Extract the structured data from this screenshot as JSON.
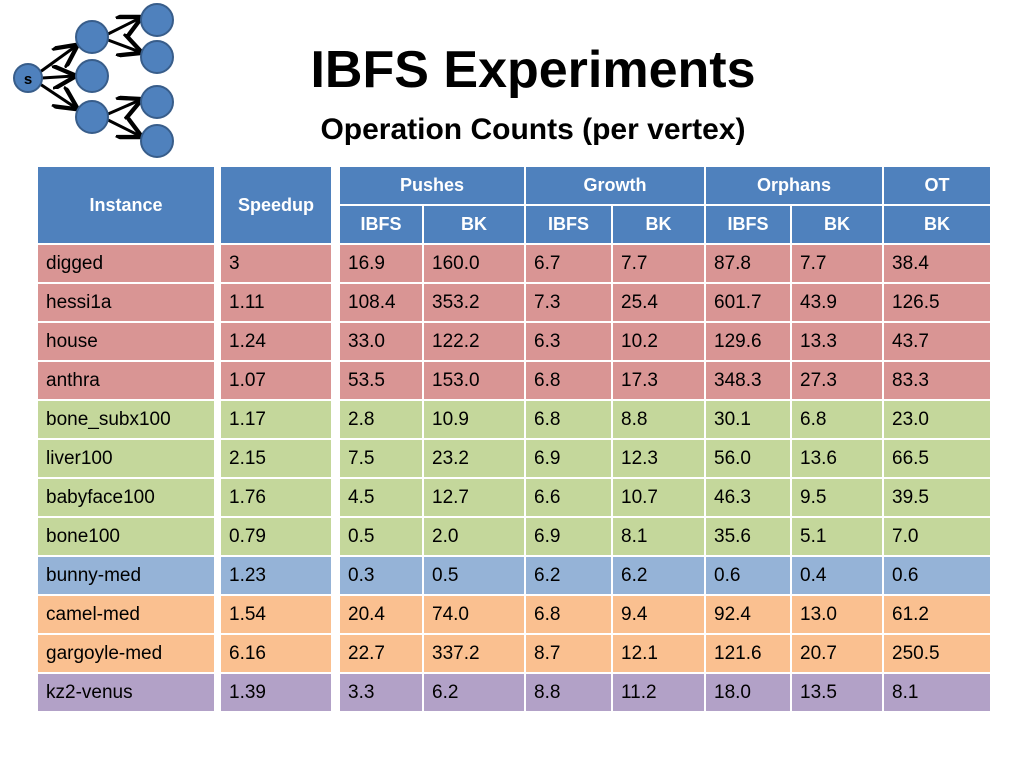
{
  "slide": {
    "title": "IBFS Experiments",
    "subtitle": "Operation Counts (per vertex)"
  },
  "logo": {
    "source_label": "s"
  },
  "colors": {
    "header": "#4f81bd",
    "red": "#d99594",
    "green": "#c4d79b",
    "blue": "#95b3d7",
    "orange": "#fac090",
    "purple": "#b2a1c7"
  },
  "table": {
    "instance_header": "Instance",
    "speedup_header": "Speedup",
    "groups": [
      {
        "label": "Pushes",
        "span": 2
      },
      {
        "label": "Growth",
        "span": 2
      },
      {
        "label": "Orphans",
        "span": 2
      },
      {
        "label": "OT",
        "span": 1
      }
    ],
    "subheaders": [
      "IBFS",
      "BK",
      "IBFS",
      "BK",
      "IBFS",
      "BK",
      "BK"
    ],
    "rows": [
      {
        "instance": "digged",
        "speedup": "3",
        "group": "red",
        "values": [
          "16.9",
          "160.0",
          "6.7",
          "7.7",
          "87.8",
          "7.7",
          "38.4"
        ]
      },
      {
        "instance": "hessi1a",
        "speedup": "1.11",
        "group": "red",
        "values": [
          "108.4",
          "353.2",
          "7.3",
          "25.4",
          "601.7",
          "43.9",
          "126.5"
        ]
      },
      {
        "instance": "house",
        "speedup": "1.24",
        "group": "red",
        "values": [
          "33.0",
          "122.2",
          "6.3",
          "10.2",
          "129.6",
          "13.3",
          "43.7"
        ]
      },
      {
        "instance": "anthra",
        "speedup": "1.07",
        "group": "red",
        "values": [
          "53.5",
          "153.0",
          "6.8",
          "17.3",
          "348.3",
          "27.3",
          "83.3"
        ]
      },
      {
        "instance": "bone_subx100",
        "speedup": "1.17",
        "group": "green",
        "values": [
          "2.8",
          "10.9",
          "6.8",
          "8.8",
          "30.1",
          "6.8",
          "23.0"
        ]
      },
      {
        "instance": "liver100",
        "speedup": "2.15",
        "group": "green",
        "values": [
          "7.5",
          "23.2",
          "6.9",
          "12.3",
          "56.0",
          "13.6",
          "66.5"
        ]
      },
      {
        "instance": "babyface100",
        "speedup": "1.76",
        "group": "green",
        "values": [
          "4.5",
          "12.7",
          "6.6",
          "10.7",
          "46.3",
          "9.5",
          "39.5"
        ]
      },
      {
        "instance": "bone100",
        "speedup": "0.79",
        "group": "green",
        "values": [
          "0.5",
          "2.0",
          "6.9",
          "8.1",
          "35.6",
          "5.1",
          "7.0"
        ]
      },
      {
        "instance": "bunny-med",
        "speedup": "1.23",
        "group": "blue",
        "values": [
          "0.3",
          "0.5",
          "6.2",
          "6.2",
          "0.6",
          "0.4",
          "0.6"
        ]
      },
      {
        "instance": "camel-med",
        "speedup": "1.54",
        "group": "orange",
        "values": [
          "20.4",
          "74.0",
          "6.8",
          "9.4",
          "92.4",
          "13.0",
          "61.2"
        ]
      },
      {
        "instance": "gargoyle-med",
        "speedup": "6.16",
        "group": "orange",
        "values": [
          "22.7",
          "337.2",
          "8.7",
          "12.1",
          "121.6",
          "20.7",
          "250.5"
        ]
      },
      {
        "instance": "kz2-venus",
        "speedup": "1.39",
        "group": "purple",
        "values": [
          "3.3",
          "6.2",
          "8.8",
          "11.2",
          "18.0",
          "13.5",
          "8.1"
        ]
      }
    ]
  }
}
